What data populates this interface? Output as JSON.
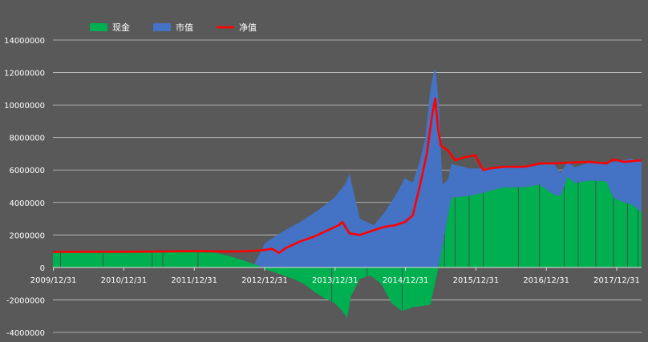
{
  "chart_data": {
    "type": "area",
    "legend_position": "top-left",
    "grid": true,
    "y_ticks": [
      14000000,
      12000000,
      10000000,
      8000000,
      6000000,
      4000000,
      2000000,
      0,
      -2000000,
      -4000000
    ],
    "ylim": [
      -4000000,
      14000000
    ],
    "x_ticks": [
      "2009/12/31",
      "2010/12/31",
      "2011/12/31",
      "2012/12/31",
      "2013/12/31",
      "2014/12/31",
      "2015/12/31",
      "2016/12/31",
      "2017/12/31"
    ],
    "xlim": [
      2009.99,
      2018.35
    ],
    "series": [
      {
        "name": "现金",
        "color": "#00b050",
        "chart_kind": "area",
        "points": [
          [
            2009.99,
            950000
          ],
          [
            2010.5,
            950000
          ],
          [
            2011.0,
            950000
          ],
          [
            2011.5,
            950000
          ],
          [
            2012.0,
            950000
          ],
          [
            2012.3,
            900000
          ],
          [
            2012.5,
            700000
          ],
          [
            2012.75,
            350000
          ],
          [
            2012.95,
            50000
          ],
          [
            2013.0,
            -100000
          ],
          [
            2013.2,
            -400000
          ],
          [
            2013.4,
            -700000
          ],
          [
            2013.55,
            -1000000
          ],
          [
            2013.7,
            -1500000
          ],
          [
            2013.85,
            -1900000
          ],
          [
            2013.99,
            -2200000
          ],
          [
            2014.1,
            -2700000
          ],
          [
            2014.17,
            -3100000
          ],
          [
            2014.22,
            -1800000
          ],
          [
            2014.35,
            -700000
          ],
          [
            2014.5,
            -500000
          ],
          [
            2014.65,
            -1000000
          ],
          [
            2014.8,
            -2200000
          ],
          [
            2014.95,
            -2700000
          ],
          [
            2015.1,
            -2450000
          ],
          [
            2015.35,
            -2300000
          ],
          [
            2015.45,
            -300000
          ],
          [
            2015.52,
            1300000
          ],
          [
            2015.6,
            3200000
          ],
          [
            2015.65,
            4300000
          ],
          [
            2015.9,
            4400000
          ],
          [
            2016.1,
            4600000
          ],
          [
            2016.35,
            4900000
          ],
          [
            2016.7,
            4950000
          ],
          [
            2016.9,
            5100000
          ],
          [
            2017.1,
            4500000
          ],
          [
            2017.2,
            4400000
          ],
          [
            2017.3,
            5600000
          ],
          [
            2017.4,
            5200000
          ],
          [
            2017.6,
            5350000
          ],
          [
            2017.85,
            5300000
          ],
          [
            2017.95,
            4300000
          ],
          [
            2018.1,
            4000000
          ],
          [
            2018.2,
            3900000
          ],
          [
            2018.35,
            3400000
          ]
        ]
      },
      {
        "name": "市值",
        "color": "#4472c4",
        "chart_kind": "area",
        "points": [
          [
            2009.99,
            0
          ],
          [
            2012.85,
            0
          ],
          [
            2013.0,
            1500000
          ],
          [
            2013.25,
            2200000
          ],
          [
            2013.5,
            2800000
          ],
          [
            2013.75,
            3500000
          ],
          [
            2013.99,
            4300000
          ],
          [
            2014.15,
            5200000
          ],
          [
            2014.2,
            5800000
          ],
          [
            2014.35,
            3000000
          ],
          [
            2014.55,
            2600000
          ],
          [
            2014.7,
            3400000
          ],
          [
            2014.85,
            4400000
          ],
          [
            2014.99,
            5500000
          ],
          [
            2015.1,
            5200000
          ],
          [
            2015.2,
            6500000
          ],
          [
            2015.28,
            8000000
          ],
          [
            2015.35,
            11000000
          ],
          [
            2015.42,
            12400000
          ],
          [
            2015.47,
            10000000
          ],
          [
            2015.52,
            3800000
          ],
          [
            2015.6,
            2200000
          ],
          [
            2015.7,
            2000000
          ],
          [
            2015.9,
            1700000
          ],
          [
            2016.1,
            1500000
          ],
          [
            2016.5,
            1200000
          ],
          [
            2016.9,
            1200000
          ],
          [
            2017.1,
            1900000
          ],
          [
            2017.3,
            900000
          ],
          [
            2017.6,
            1100000
          ],
          [
            2017.85,
            1150000
          ],
          [
            2017.95,
            2200000
          ],
          [
            2018.1,
            2600000
          ],
          [
            2018.35,
            3100000
          ]
        ]
      },
      {
        "name": "净值",
        "color": "#ff0000",
        "chart_kind": "line",
        "points": [
          [
            2009.99,
            950000
          ],
          [
            2010.5,
            960000
          ],
          [
            2011.0,
            960000
          ],
          [
            2011.5,
            980000
          ],
          [
            2012.0,
            1000000
          ],
          [
            2012.5,
            980000
          ],
          [
            2012.75,
            1000000
          ],
          [
            2012.95,
            1050000
          ],
          [
            2013.1,
            1150000
          ],
          [
            2013.2,
            900000
          ],
          [
            2013.3,
            1200000
          ],
          [
            2013.5,
            1600000
          ],
          [
            2013.7,
            1900000
          ],
          [
            2013.9,
            2300000
          ],
          [
            2014.05,
            2600000
          ],
          [
            2014.1,
            2800000
          ],
          [
            2014.2,
            2100000
          ],
          [
            2014.35,
            2000000
          ],
          [
            2014.55,
            2300000
          ],
          [
            2014.7,
            2500000
          ],
          [
            2014.85,
            2600000
          ],
          [
            2014.99,
            2800000
          ],
          [
            2015.1,
            3200000
          ],
          [
            2015.2,
            5000000
          ],
          [
            2015.3,
            7000000
          ],
          [
            2015.38,
            9500000
          ],
          [
            2015.42,
            10400000
          ],
          [
            2015.46,
            8500000
          ],
          [
            2015.5,
            7500000
          ],
          [
            2015.6,
            7200000
          ],
          [
            2015.7,
            6600000
          ],
          [
            2015.85,
            6800000
          ],
          [
            2015.99,
            6900000
          ],
          [
            2016.05,
            6400000
          ],
          [
            2016.1,
            6000000
          ],
          [
            2016.2,
            6100000
          ],
          [
            2016.4,
            6200000
          ],
          [
            2016.7,
            6200000
          ],
          [
            2016.9,
            6400000
          ],
          [
            2017.1,
            6400000
          ],
          [
            2017.3,
            6450000
          ],
          [
            2017.6,
            6500000
          ],
          [
            2017.85,
            6400000
          ],
          [
            2017.95,
            6650000
          ],
          [
            2018.1,
            6500000
          ],
          [
            2018.35,
            6600000
          ]
        ]
      }
    ]
  }
}
